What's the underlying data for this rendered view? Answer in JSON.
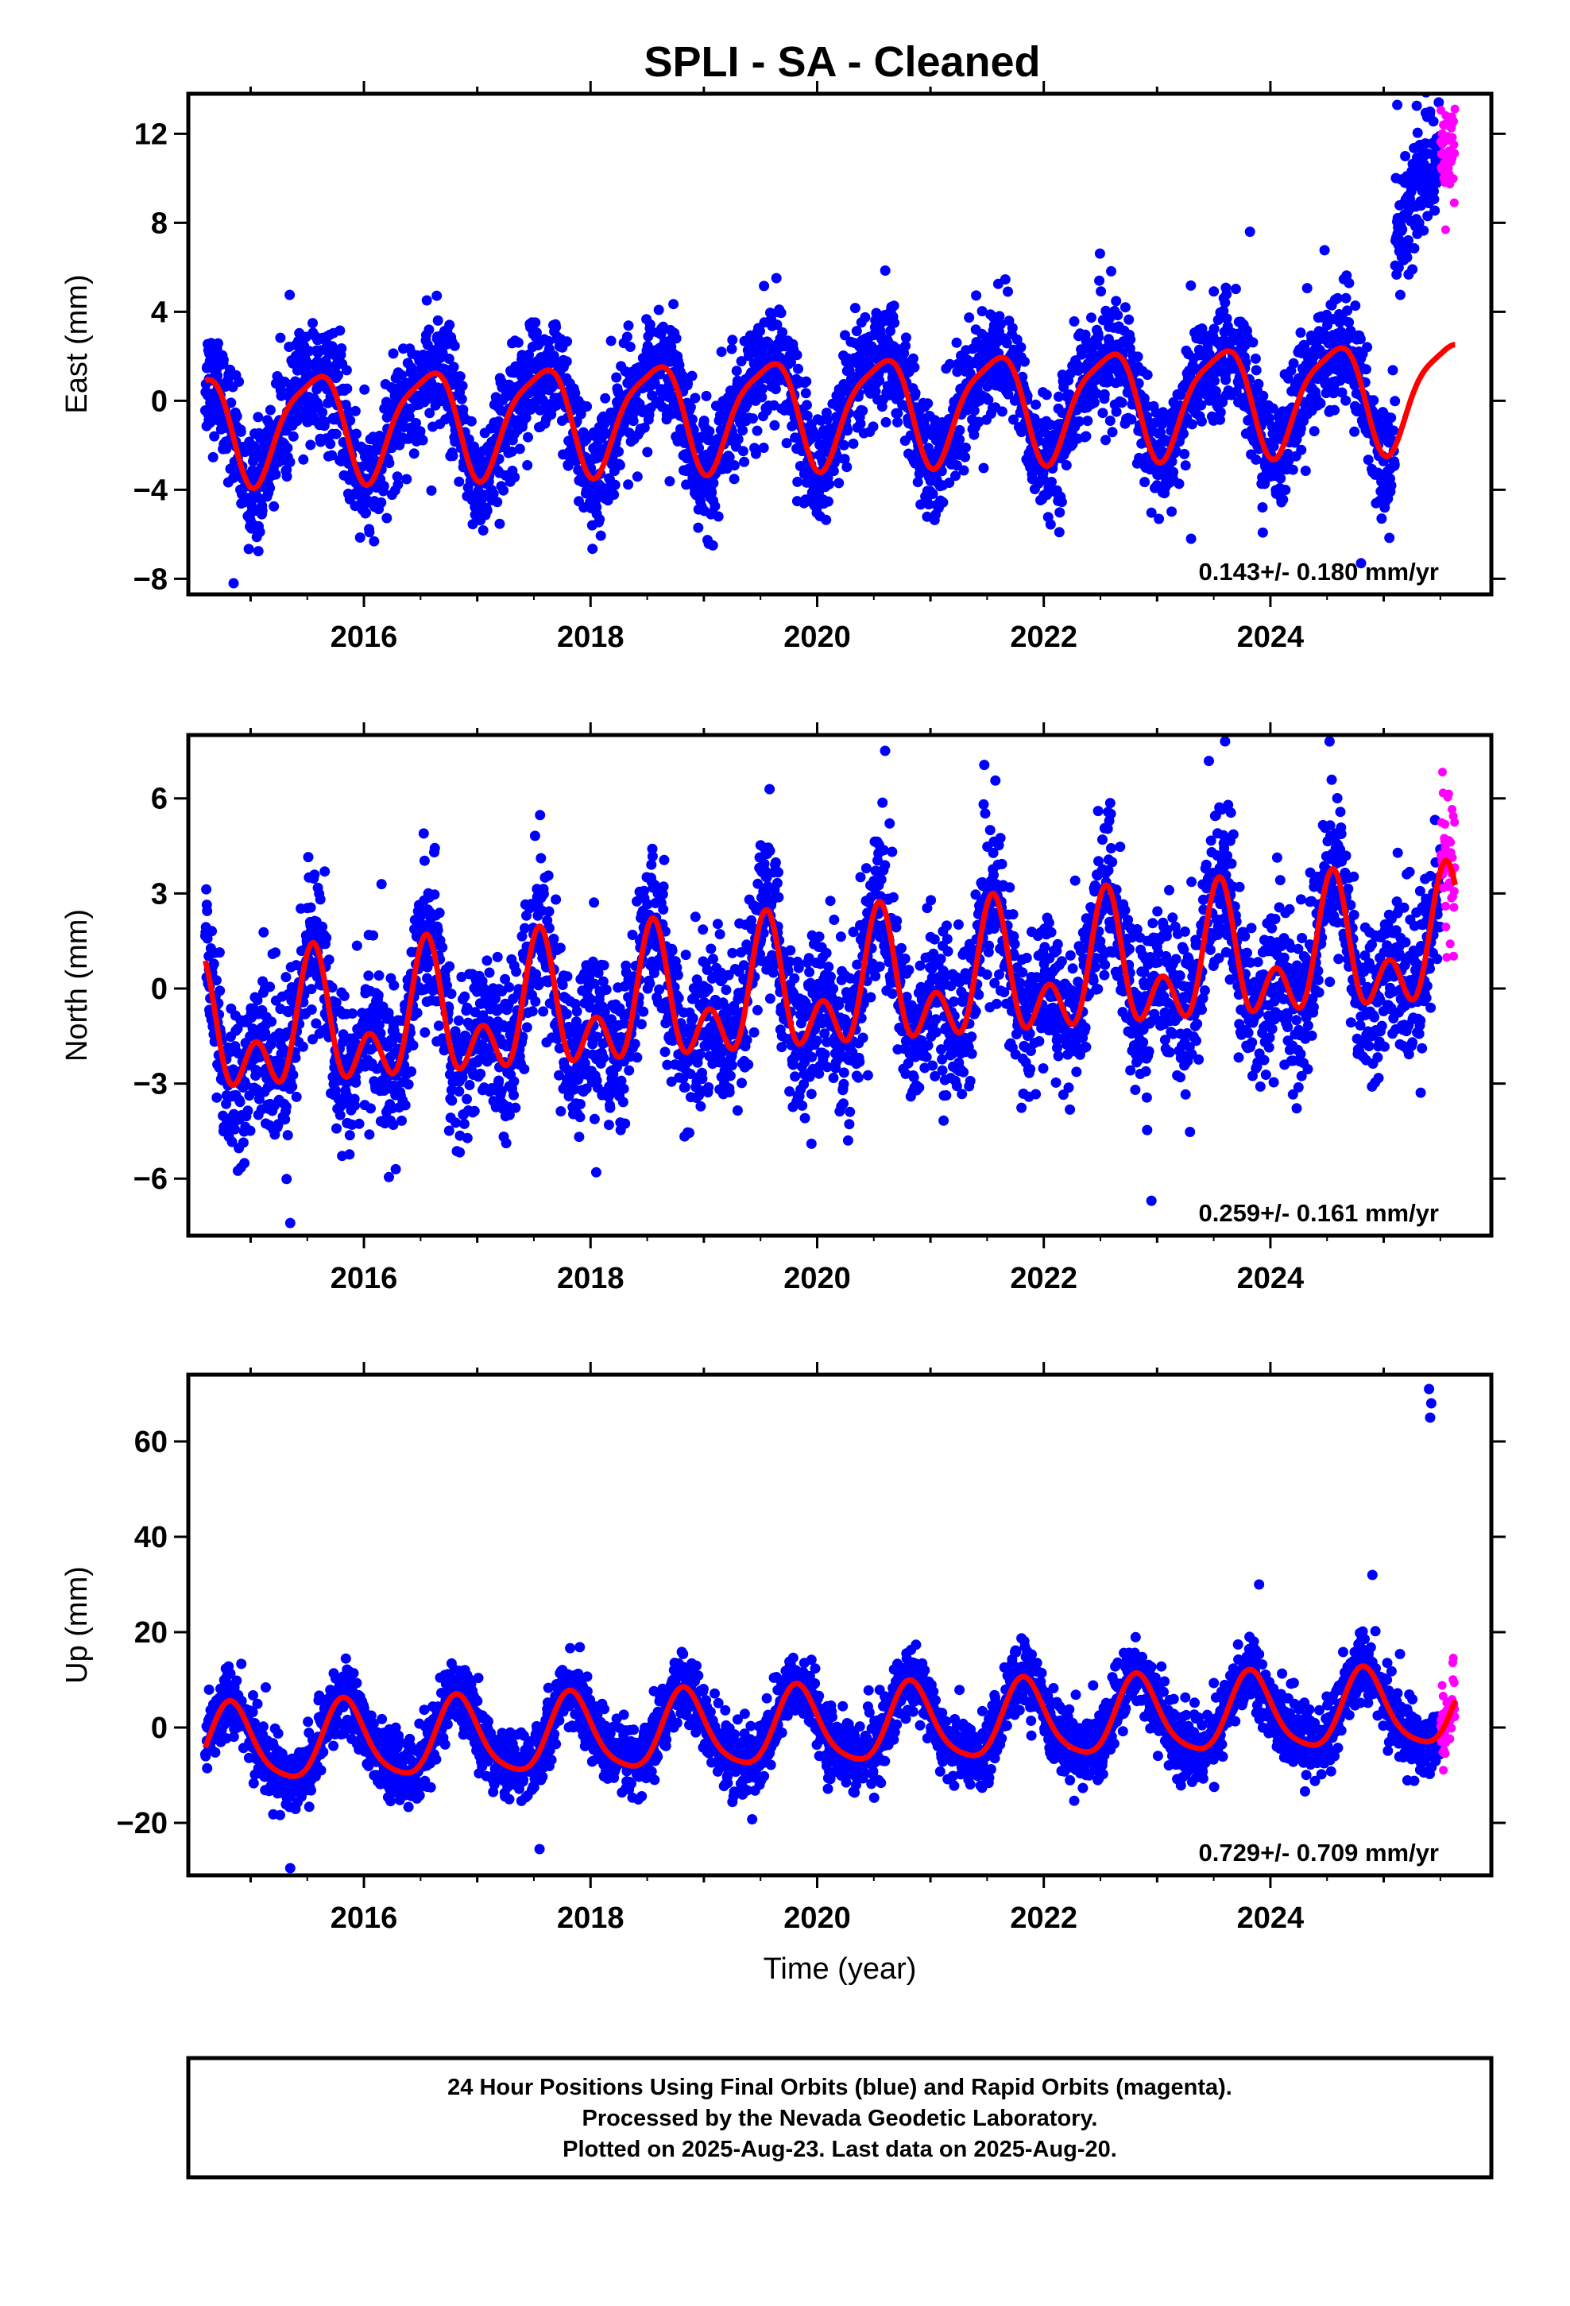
{
  "title": "SPLI  - SA - Cleaned",
  "footer_lines": [
    "24 Hour Positions Using Final Orbits (blue) and Rapid Orbits (magenta).",
    "Processed by the Nevada Geodetic Laboratory.",
    "Plotted on 2025-Aug-23. Last data on 2025-Aug-20."
  ],
  "colors": {
    "final_orbits": "#0000ff",
    "rapid_orbits": "#ff00ff",
    "model_fit": "#ff0000",
    "frame": "#000000"
  },
  "chart_data": [
    {
      "type": "scatter",
      "panel": "east",
      "ylabel": "East (mm)",
      "xlabel": "",
      "rate_label": "0.143+/- 0.180 mm/yr",
      "xlim": [
        2014.45,
        2025.95
      ],
      "ylim": [
        -8.7,
        13.8
      ],
      "xticks": [
        2016,
        2018,
        2020,
        2022,
        2024
      ],
      "yticks": [
        -8,
        -4,
        0,
        4,
        8,
        12
      ],
      "data_start": 2014.6,
      "data_end": 2025.63,
      "rapid_start": 2025.5,
      "trend_mm_per_yr": 0.143,
      "model": {
        "offset": -1.15,
        "ref_year": 2014.6,
        "annual_amp": 2.35,
        "annual_peak": 0.55,
        "semiannual_amp": 0.55,
        "semiannual_peak": 0.25
      },
      "noise_sd": 1.3,
      "offsets": [
        {
          "start": 2025.1,
          "shift": 9.0
        }
      ],
      "outliers": [
        {
          "x": 2023.82,
          "y": 7.6
        },
        {
          "x": 2024.8,
          "y": -7.3
        },
        {
          "x": 2014.85,
          "y": -8.2
        },
        {
          "x": 2025.12,
          "y": 13.3
        },
        {
          "x": 2023.3,
          "y": -6.2
        }
      ]
    },
    {
      "type": "scatter",
      "panel": "north",
      "ylabel": "North (mm)",
      "xlabel": "",
      "rate_label": "0.259+/- 0.161 mm/yr",
      "xlim": [
        2014.45,
        2025.95
      ],
      "ylim": [
        -7.8,
        8.0
      ],
      "xticks": [
        2016,
        2018,
        2020,
        2022,
        2024
      ],
      "yticks": [
        -6,
        -3,
        0,
        3,
        6
      ],
      "data_start": 2014.6,
      "data_end": 2025.63,
      "rapid_start": 2025.5,
      "trend_mm_per_yr": 0.259,
      "model": {
        "offset": -1.6,
        "ref_year": 2014.6,
        "annual_amp": 1.5,
        "annual_peak": 0.55,
        "semiannual_amp": 1.3,
        "semiannual_peak": 0.05
      },
      "noise_sd": 1.25,
      "offsets": [],
      "outliers": [
        {
          "x": 2015.35,
          "y": -7.4
        },
        {
          "x": 2018.05,
          "y": -5.8
        },
        {
          "x": 2020.6,
          "y": 7.5
        },
        {
          "x": 2023.6,
          "y": 7.8
        },
        {
          "x": 2022.95,
          "y": -6.7
        },
        {
          "x": 2019.95,
          "y": -4.9
        }
      ]
    },
    {
      "type": "scatter",
      "panel": "up",
      "ylabel": "Up (mm)",
      "xlabel": "Time (year)",
      "rate_label": "0.729+/- 0.709 mm/yr",
      "xlim": [
        2014.45,
        2025.95
      ],
      "ylim": [
        -31,
        74
      ],
      "xticks": [
        2016,
        2018,
        2020,
        2022,
        2024
      ],
      "yticks": [
        -20,
        0,
        20,
        40,
        60
      ],
      "data_start": 2014.6,
      "data_end": 2025.63,
      "rapid_start": 2025.5,
      "trend_mm_per_yr": 0.729,
      "model": {
        "offset": -4.0,
        "ref_year": 2014.6,
        "annual_amp": 8.0,
        "annual_peak": 0.83,
        "semiannual_amp": 1.5,
        "semiannual_peak": 0.3
      },
      "noise_sd": 3.6,
      "offsets": [],
      "outliers": [
        {
          "x": 2025.4,
          "y": 71
        },
        {
          "x": 2025.42,
          "y": 68
        },
        {
          "x": 2025.41,
          "y": 65
        },
        {
          "x": 2015.35,
          "y": -29.5
        },
        {
          "x": 2023.9,
          "y": 30
        },
        {
          "x": 2024.9,
          "y": 32
        },
        {
          "x": 2017.55,
          "y": -25.5
        }
      ]
    }
  ]
}
